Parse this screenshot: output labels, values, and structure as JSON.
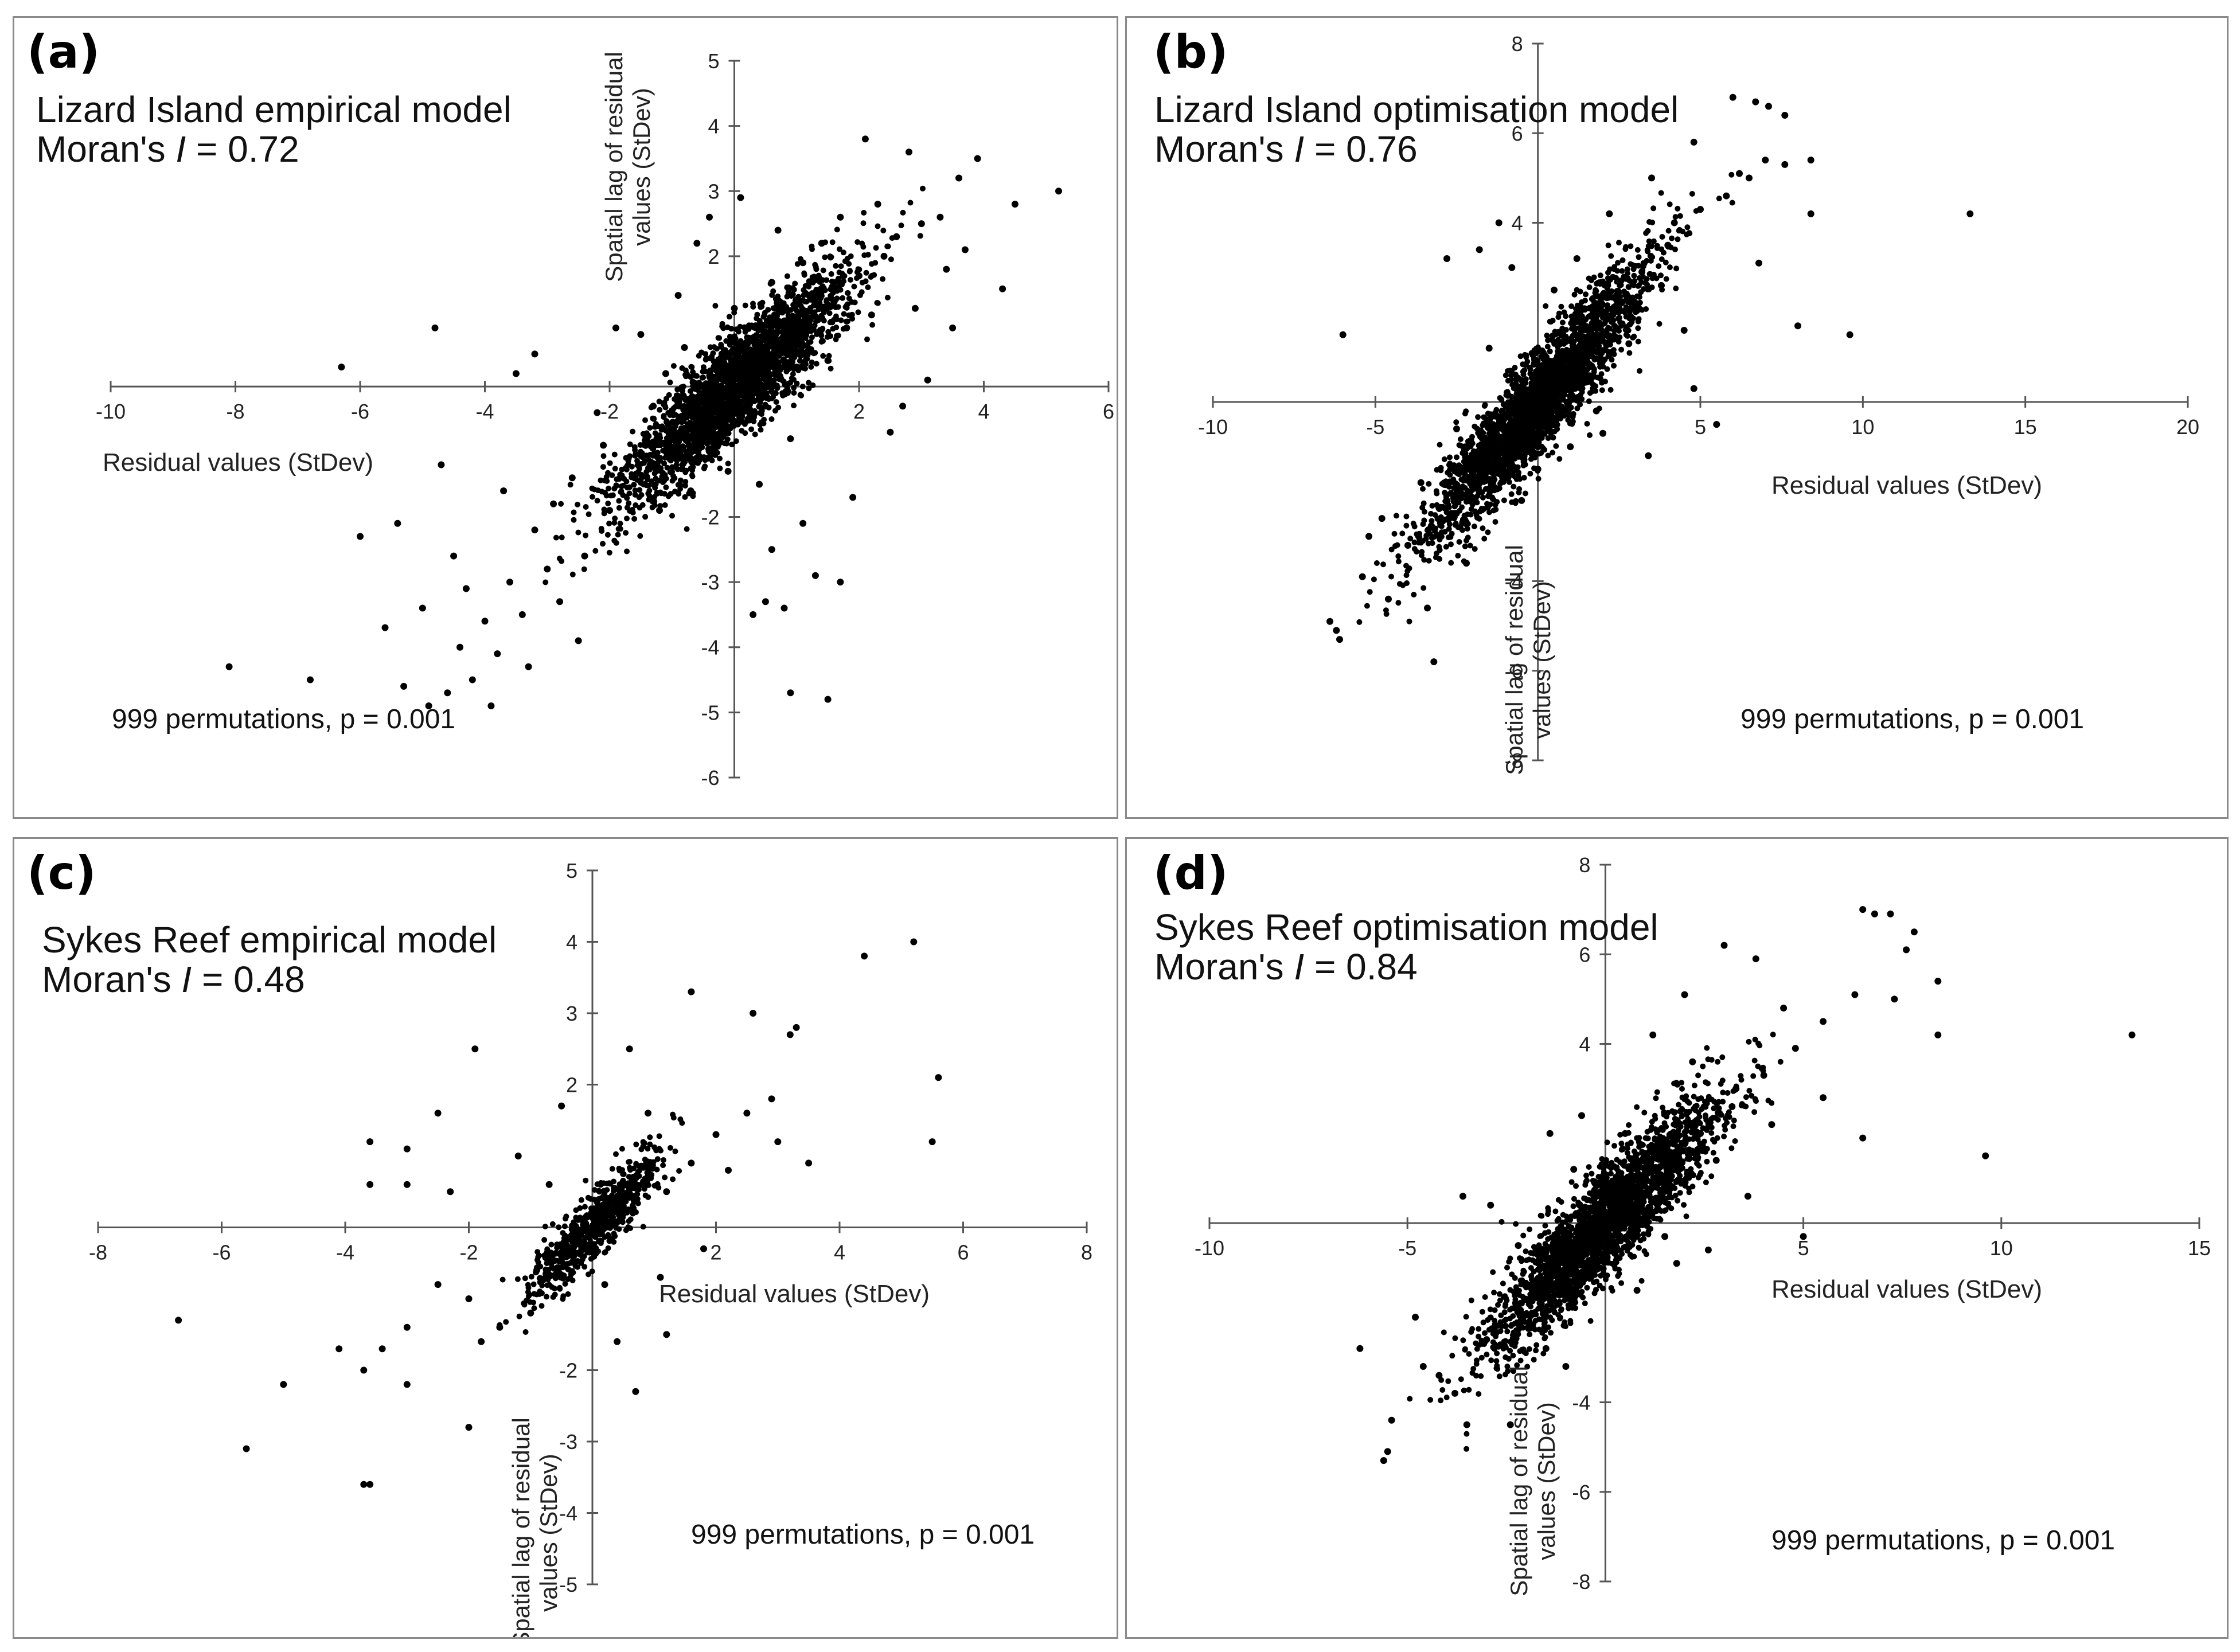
{
  "chart_data": [
    {
      "type": "scatter",
      "panel_label": "(a)",
      "title_line1": "Lizard Island empirical model",
      "moran_prefix": "Moran's ",
      "moran_symbol": "I",
      "moran_value": " = 0.72",
      "xlabel": "Residual values (StDev)",
      "ylabel_line1": "Spatial lag of residual",
      "ylabel_line2": "values (StDev)",
      "annotation": "999 permutations, p = 0.001",
      "xlim": [
        -10,
        6
      ],
      "ylim": [
        -6,
        5
      ],
      "x_ticks": [
        -10,
        -8,
        -6,
        -4,
        -2,
        2,
        4,
        6
      ],
      "y_ticks": [
        -6,
        -5,
        -4,
        -3,
        -2,
        2,
        3,
        4,
        5
      ],
      "points": [
        [
          0.2,
          0.4
        ],
        [
          -0.5,
          -0.2
        ],
        [
          0.8,
          0.6
        ],
        [
          1.2,
          1.0
        ],
        [
          -1.0,
          -0.8
        ],
        [
          1.6,
          1.3
        ],
        [
          2.0,
          1.7
        ],
        [
          -1.6,
          -1.4
        ],
        [
          2.4,
          2.0
        ],
        [
          1.0,
          0.3
        ],
        [
          -0.2,
          0.5
        ],
        [
          0.5,
          -0.3
        ],
        [
          1.8,
          0.9
        ],
        [
          -1.3,
          -0.3
        ],
        [
          2.6,
          2.3
        ],
        [
          -2.0,
          -1.9
        ],
        [
          0.0,
          1.2
        ],
        [
          1.4,
          2.2
        ],
        [
          3.0,
          2.5
        ],
        [
          -0.8,
          0.6
        ],
        [
          2.2,
          1.1
        ],
        [
          -2.4,
          -2.6
        ],
        [
          -3.0,
          -2.8
        ],
        [
          -3.4,
          -3.5
        ],
        [
          -3.8,
          -4.1
        ],
        [
          -4.2,
          -4.5
        ],
        [
          -4.6,
          -4.7
        ],
        [
          -3.6,
          -3.0
        ],
        [
          -2.8,
          -3.3
        ],
        [
          -4.0,
          -3.6
        ],
        [
          -3.2,
          -2.2
        ],
        [
          -2.6,
          -1.4
        ],
        [
          -4.4,
          -4.0
        ],
        [
          -5.0,
          -3.4
        ],
        [
          -5.4,
          -2.1
        ],
        [
          -4.7,
          -1.2
        ],
        [
          -4.9,
          -4.9
        ],
        [
          -8.1,
          -4.3
        ],
        [
          -6.8,
          -4.5
        ],
        [
          -6.0,
          -2.3
        ],
        [
          -4.8,
          0.9
        ],
        [
          -6.3,
          0.3
        ],
        [
          -3.2,
          0.5
        ],
        [
          -2.2,
          -0.4
        ],
        [
          -2.5,
          -3.9
        ],
        [
          -3.5,
          0.2
        ],
        [
          -5.3,
          -4.6
        ],
        [
          -3.9,
          -4.9
        ],
        [
          -4.3,
          -3.1
        ],
        [
          -2.9,
          -1.8
        ],
        [
          -3.3,
          -4.3
        ],
        [
          -5.6,
          -3.7
        ],
        [
          -4.5,
          -2.6
        ],
        [
          -3.7,
          -1.6
        ],
        [
          3.9,
          3.5
        ],
        [
          4.5,
          2.8
        ],
        [
          5.2,
          3.0
        ],
        [
          4.3,
          1.5
        ],
        [
          3.6,
          3.2
        ],
        [
          3.3,
          2.6
        ],
        [
          2.8,
          3.6
        ],
        [
          2.1,
          3.8
        ],
        [
          2.9,
          1.2
        ],
        [
          3.7,
          2.1
        ],
        [
          3.5,
          0.9
        ],
        [
          1.1,
          -2.1
        ],
        [
          1.3,
          -2.9
        ],
        [
          0.5,
          -3.3
        ],
        [
          0.8,
          -3.4
        ],
        [
          0.3,
          -3.5
        ],
        [
          0.9,
          -4.7
        ],
        [
          1.5,
          -4.8
        ],
        [
          1.7,
          -3.0
        ],
        [
          0.4,
          -1.5
        ],
        [
          0.6,
          -2.5
        ],
        [
          1.9,
          -1.7
        ],
        [
          -0.6,
          2.2
        ],
        [
          -0.9,
          1.4
        ],
        [
          -1.5,
          0.8
        ],
        [
          -1.9,
          0.9
        ],
        [
          -0.4,
          2.6
        ],
        [
          0.1,
          2.9
        ],
        [
          0.7,
          2.4
        ],
        [
          3.4,
          1.8
        ],
        [
          2.5,
          -0.7
        ],
        [
          2.7,
          -0.3
        ],
        [
          3.1,
          0.1
        ],
        [
          -1.7,
          -1.1
        ],
        [
          -1.2,
          -1.9
        ],
        [
          -0.7,
          -1.6
        ],
        [
          -2.1,
          -0.9
        ],
        [
          -1.1,
          0.2
        ],
        [
          0.6,
          1.6
        ],
        [
          1.5,
          0.4
        ],
        [
          2.3,
          2.8
        ],
        [
          1.7,
          2.6
        ],
        [
          -0.3,
          -0.9
        ],
        [
          0.9,
          -0.8
        ],
        [
          -0.1,
          -1.3
        ],
        [
          1.1,
          1.9
        ]
      ]
    },
    {
      "type": "scatter",
      "panel_label": "(b)",
      "title_line1": "Lizard Island optimisation model",
      "moran_prefix": "Moran's ",
      "moran_symbol": "I",
      "moran_value": " = 0.76",
      "xlabel": "Residual values (StDev)",
      "ylabel_line1": "Spatial lag of residual",
      "ylabel_line2": "values (StDev)",
      "annotation": "999 permutations, p = 0.001",
      "xlim": [
        -10,
        20
      ],
      "ylim": [
        -8,
        8
      ],
      "x_ticks": [
        -10,
        -5,
        5,
        10,
        15,
        20
      ],
      "y_ticks": [
        -8,
        -6,
        -4,
        4,
        6,
        8
      ],
      "points": [
        [
          0.2,
          0.4
        ],
        [
          -1.0,
          -0.8
        ],
        [
          1.5,
          1.2
        ],
        [
          -2.0,
          -1.8
        ],
        [
          2.5,
          2.1
        ],
        [
          3.2,
          2.9
        ],
        [
          -3.0,
          -2.7
        ],
        [
          4.0,
          3.5
        ],
        [
          -4.0,
          -3.2
        ],
        [
          5.0,
          4.3
        ],
        [
          5.8,
          4.6
        ],
        [
          6.2,
          5.1
        ],
        [
          6.5,
          5.0
        ],
        [
          7.0,
          5.4
        ],
        [
          7.6,
          5.3
        ],
        [
          6.0,
          6.8
        ],
        [
          6.7,
          6.7
        ],
        [
          7.1,
          6.6
        ],
        [
          7.6,
          6.4
        ],
        [
          8.4,
          5.4
        ],
        [
          8.4,
          4.2
        ],
        [
          9.6,
          1.5
        ],
        [
          13.3,
          4.2
        ],
        [
          8.0,
          1.7
        ],
        [
          -6.0,
          1.5
        ],
        [
          -6.4,
          -4.9
        ],
        [
          -6.2,
          -5.1
        ],
        [
          -6.1,
          -5.3
        ],
        [
          -5.4,
          -3.9
        ],
        [
          -4.6,
          -4.4
        ],
        [
          -3.2,
          -5.8
        ],
        [
          -3.4,
          -4.6
        ],
        [
          -4.8,
          -2.6
        ],
        [
          -5.2,
          -3.0
        ],
        [
          -1.8,
          3.4
        ],
        [
          -2.8,
          3.2
        ],
        [
          -1.2,
          4.0
        ],
        [
          -0.8,
          3.0
        ],
        [
          2.0,
          -0.7
        ],
        [
          3.4,
          -1.2
        ],
        [
          4.8,
          0.3
        ],
        [
          5.5,
          -0.5
        ],
        [
          4.5,
          1.6
        ],
        [
          1.2,
          3.2
        ],
        [
          2.2,
          4.2
        ],
        [
          3.5,
          5.0
        ],
        [
          4.8,
          5.8
        ],
        [
          -2.5,
          -0.6
        ],
        [
          0.5,
          2.5
        ],
        [
          1.0,
          -1.0
        ],
        [
          -1.5,
          1.2
        ],
        [
          -0.5,
          -2.2
        ],
        [
          2.8,
          1.3
        ],
        [
          3.8,
          2.6
        ],
        [
          1.8,
          -0.2
        ],
        [
          -3.6,
          -1.8
        ],
        [
          -2.2,
          -3.6
        ],
        [
          0.0,
          -1.5
        ],
        [
          4.2,
          4.0
        ],
        [
          6.8,
          3.1
        ]
      ]
    },
    {
      "type": "scatter",
      "panel_label": "(c)",
      "title_line1": "Sykes Reef empirical model",
      "moran_prefix": "Moran's ",
      "moran_symbol": "I",
      "moran_value": " = 0.48",
      "xlabel": "Residual values (StDev)",
      "ylabel_line1": "Spatial lag of residual",
      "ylabel_line2": "values (StDev)",
      "annotation": "999 permutations, p = 0.001",
      "xlim": [
        -8,
        8
      ],
      "ylim": [
        -5,
        5
      ],
      "x_ticks": [
        -8,
        -6,
        -4,
        -2,
        2,
        4,
        6,
        8
      ],
      "y_ticks": [
        -5,
        -4,
        -3,
        -2,
        2,
        3,
        4,
        5
      ],
      "points": [
        [
          -0.2,
          -0.2
        ],
        [
          0.2,
          0.1
        ],
        [
          -0.5,
          -0.4
        ],
        [
          0.5,
          0.3
        ],
        [
          0.8,
          0.6
        ],
        [
          -0.9,
          -0.6
        ],
        [
          1.2,
          0.5
        ],
        [
          1.6,
          0.9
        ],
        [
          2.0,
          1.3
        ],
        [
          2.5,
          1.6
        ],
        [
          3.0,
          1.2
        ],
        [
          3.2,
          2.7
        ],
        [
          3.3,
          2.8
        ],
        [
          4.4,
          3.8
        ],
        [
          5.2,
          4.0
        ],
        [
          5.6,
          2.1
        ],
        [
          5.5,
          1.2
        ],
        [
          2.6,
          3.0
        ],
        [
          3.5,
          0.9
        ],
        [
          1.6,
          3.3
        ],
        [
          0.6,
          2.5
        ],
        [
          -1.0,
          -1.2
        ],
        [
          -1.5,
          -1.4
        ],
        [
          -2.0,
          -1.0
        ],
        [
          -2.5,
          -0.8
        ],
        [
          -3.0,
          -1.4
        ],
        [
          -3.4,
          -1.7
        ],
        [
          -3.7,
          -2.0
        ],
        [
          -4.1,
          -1.7
        ],
        [
          -5.0,
          -2.2
        ],
        [
          -5.6,
          -3.1
        ],
        [
          -6.7,
          -1.3
        ],
        [
          -3.7,
          -3.6
        ],
        [
          -3.6,
          -3.6
        ],
        [
          -2.0,
          -2.8
        ],
        [
          -3.0,
          -2.2
        ],
        [
          -3.6,
          0.6
        ],
        [
          -3.6,
          1.2
        ],
        [
          -3.0,
          0.6
        ],
        [
          -3.0,
          1.1
        ],
        [
          -2.3,
          0.5
        ],
        [
          -1.9,
          2.5
        ],
        [
          -1.2,
          1.0
        ],
        [
          -0.5,
          1.7
        ],
        [
          0.4,
          -1.6
        ],
        [
          0.7,
          -2.3
        ],
        [
          1.2,
          -1.5
        ],
        [
          0.2,
          -0.8
        ],
        [
          1.1,
          -0.7
        ],
        [
          2.2,
          0.8
        ],
        [
          2.9,
          1.8
        ],
        [
          1.8,
          -0.3
        ],
        [
          -2.5,
          1.6
        ],
        [
          -1.8,
          -1.6
        ],
        [
          0.9,
          1.6
        ],
        [
          -0.7,
          0.6
        ]
      ]
    },
    {
      "type": "scatter",
      "panel_label": "(d)",
      "title_line1": "Sykes Reef optimisation model",
      "moran_prefix": "Moran's ",
      "moran_symbol": "I",
      "moran_value": " = 0.84",
      "xlabel": "Residual values (StDev)",
      "ylabel_line1": "Spatial lag of residual",
      "ylabel_line2": "values (StDev)",
      "annotation": "999 permutations, p = 0.001",
      "xlim": [
        -10,
        15
      ],
      "ylim": [
        -8,
        8
      ],
      "x_ticks": [
        -10,
        -5,
        5,
        10,
        15
      ],
      "y_ticks": [
        -8,
        -6,
        -4,
        4,
        6,
        8
      ],
      "points": [
        [
          0.2,
          0.3
        ],
        [
          -0.5,
          -0.4
        ],
        [
          0.8,
          0.7
        ],
        [
          -1.2,
          -1.0
        ],
        [
          1.6,
          1.3
        ],
        [
          2.4,
          2.0
        ],
        [
          -2.0,
          -1.7
        ],
        [
          3.2,
          2.6
        ],
        [
          -2.8,
          -2.4
        ],
        [
          4.0,
          3.3
        ],
        [
          4.8,
          3.9
        ],
        [
          5.5,
          4.5
        ],
        [
          6.3,
          5.1
        ],
        [
          6.5,
          7.0
        ],
        [
          6.8,
          6.9
        ],
        [
          7.2,
          6.9
        ],
        [
          7.8,
          6.5
        ],
        [
          7.6,
          6.1
        ],
        [
          7.3,
          5.0
        ],
        [
          8.4,
          5.4
        ],
        [
          8.4,
          4.2
        ],
        [
          9.6,
          1.5
        ],
        [
          13.3,
          4.2
        ],
        [
          6.5,
          1.9
        ],
        [
          -3.5,
          -4.5
        ],
        [
          -4.2,
          -3.4
        ],
        [
          -5.4,
          -4.4
        ],
        [
          -5.5,
          -5.1
        ],
        [
          -5.6,
          -5.3
        ],
        [
          -4.6,
          -3.2
        ],
        [
          -3.8,
          -3.8
        ],
        [
          -2.4,
          -4.5
        ],
        [
          -3.0,
          -2.6
        ],
        [
          -4.8,
          -2.1
        ],
        [
          -3.6,
          0.6
        ],
        [
          -2.9,
          0.4
        ],
        [
          -1.4,
          2.0
        ],
        [
          -0.6,
          2.4
        ],
        [
          1.8,
          -0.9
        ],
        [
          2.6,
          -0.6
        ],
        [
          3.6,
          0.6
        ],
        [
          3.0,
          6.2
        ],
        [
          2.0,
          5.1
        ],
        [
          3.8,
          5.9
        ],
        [
          1.2,
          4.2
        ],
        [
          2.2,
          3.6
        ],
        [
          4.5,
          4.8
        ],
        [
          5.5,
          2.8
        ],
        [
          0.8,
          -1.5
        ],
        [
          -1.5,
          -2.8
        ],
        [
          1.5,
          -0.3
        ],
        [
          -0.8,
          1.2
        ],
        [
          2.8,
          1.4
        ],
        [
          -2.2,
          -0.5
        ],
        [
          0.5,
          2.0
        ],
        [
          5.0,
          -0.3
        ],
        [
          -6.2,
          -2.8
        ],
        [
          3.3,
          3.0
        ],
        [
          -1.0,
          -3.2
        ],
        [
          4.2,
          2.2
        ]
      ]
    }
  ]
}
